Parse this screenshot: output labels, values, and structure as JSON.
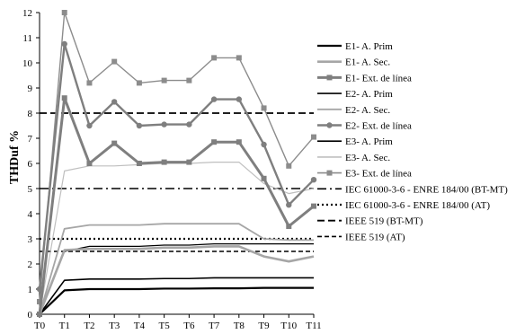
{
  "chart_data": {
    "type": "line",
    "title": "",
    "xlabel": "",
    "ylabel": "THDuf %",
    "ylim": [
      0,
      12
    ],
    "yticks": [
      0,
      1,
      2,
      3,
      4,
      5,
      6,
      7,
      8,
      9,
      10,
      11,
      12
    ],
    "categories": [
      "T0",
      "T1",
      "T2",
      "T3",
      "T4",
      "T5",
      "T6",
      "T7",
      "T8",
      "T9",
      "T10",
      "T11"
    ],
    "grid": false,
    "legend_position": "right",
    "series": [
      {
        "name": "E1- A. Prim",
        "color": "#000000",
        "width": 2.2,
        "dash": "",
        "marker": "none",
        "values": [
          0,
          0.95,
          1.0,
          1.0,
          1.0,
          1.02,
          1.02,
          1.03,
          1.03,
          1.05,
          1.05,
          1.05
        ]
      },
      {
        "name": "E1- A. Sec.",
        "color": "#a6a6a6",
        "width": 2.6,
        "dash": "",
        "marker": "none",
        "values": [
          0,
          2.55,
          2.6,
          2.6,
          2.6,
          2.65,
          2.65,
          2.7,
          2.7,
          2.3,
          2.1,
          2.3
        ]
      },
      {
        "name": "E1- Ext. de línea",
        "color": "#7f7f7f",
        "width": 3,
        "dash": "",
        "marker": "square",
        "values": [
          0,
          8.6,
          6.0,
          6.8,
          6.0,
          6.05,
          6.05,
          6.85,
          6.85,
          5.4,
          3.5,
          4.3
        ]
      },
      {
        "name": "E2- A. Prim",
        "color": "#000000",
        "width": 1.6,
        "dash": "",
        "marker": "none",
        "values": [
          0,
          1.35,
          1.4,
          1.4,
          1.4,
          1.42,
          1.42,
          1.45,
          1.45,
          1.45,
          1.45,
          1.45
        ]
      },
      {
        "name": "E2- A. Sec.",
        "color": "#a6a6a6",
        "width": 1.8,
        "dash": "",
        "marker": "none",
        "values": [
          0,
          3.4,
          3.55,
          3.55,
          3.55,
          3.6,
          3.6,
          3.6,
          3.6,
          3.0,
          2.95,
          2.95
        ]
      },
      {
        "name": "E2- Ext. de línea",
        "color": "#7f7f7f",
        "width": 2.4,
        "dash": "",
        "marker": "circle",
        "values": [
          1.0,
          10.75,
          7.5,
          8.45,
          7.5,
          7.55,
          7.55,
          8.55,
          8.55,
          6.75,
          4.35,
          5.35
        ]
      },
      {
        "name": "E3- A. Prim",
        "color": "#000000",
        "width": 1.2,
        "dash": "",
        "marker": "none",
        "values": [
          0,
          2.5,
          2.7,
          2.7,
          2.7,
          2.75,
          2.75,
          2.8,
          2.8,
          2.8,
          2.8,
          2.8
        ]
      },
      {
        "name": "E3- A. Sec.",
        "color": "#bfbfbf",
        "width": 1.2,
        "dash": "",
        "marker": "none",
        "values": [
          0,
          5.7,
          5.9,
          5.9,
          5.95,
          6.0,
          6.0,
          6.05,
          6.05,
          5.2,
          4.8,
          5.0
        ]
      },
      {
        "name": "E3- Ext. de línea",
        "color": "#8c8c8c",
        "width": 1.4,
        "dash": "",
        "marker": "square",
        "values": [
          0.5,
          12.0,
          9.2,
          10.05,
          9.2,
          9.3,
          9.3,
          10.2,
          10.2,
          8.2,
          5.9,
          7.05
        ]
      },
      {
        "name": "IEC 61000-3-6 - ENRE 184/00 (BT-MT)",
        "color": "#000000",
        "width": 1.6,
        "dash": "10,4,2,4",
        "marker": "none",
        "values": [
          5,
          5,
          5,
          5,
          5,
          5,
          5,
          5,
          5,
          5,
          5,
          5
        ]
      },
      {
        "name": "IEC 61000-3-6 - ENRE 184/00 (AT)",
        "color": "#000000",
        "width": 2.2,
        "dash": "2,3",
        "marker": "none",
        "values": [
          3,
          3,
          3,
          3,
          3,
          3,
          3,
          3,
          3,
          3,
          3,
          3
        ]
      },
      {
        "name": "IEEE 519 (BT-MT)",
        "color": "#000000",
        "width": 1.8,
        "dash": "8,4",
        "marker": "none",
        "values": [
          8,
          8,
          8,
          8,
          8,
          8,
          8,
          8,
          8,
          8,
          8,
          8
        ]
      },
      {
        "name": "IEEE 519 (AT)",
        "color": "#000000",
        "width": 1.6,
        "dash": "5,3",
        "marker": "none",
        "values": [
          2.5,
          2.5,
          2.5,
          2.5,
          2.5,
          2.5,
          2.5,
          2.5,
          2.5,
          2.5,
          2.5,
          2.5
        ]
      }
    ]
  }
}
